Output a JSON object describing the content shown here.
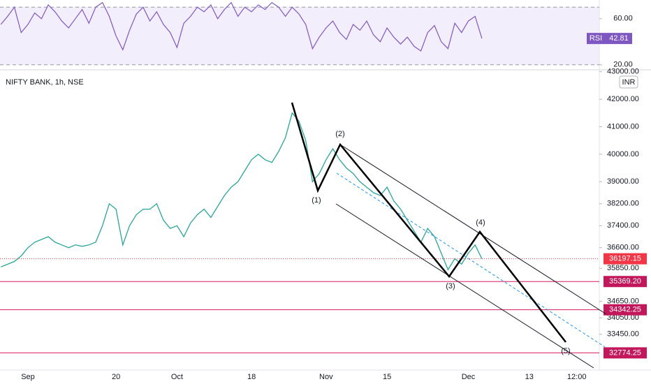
{
  "header": {
    "symbol": "NIFTY BANK, 1h, NSE",
    "currency": "INR"
  },
  "chart_data": [
    {
      "type": "line",
      "name": "RSI",
      "series": [
        {
          "name": "RSI",
          "color": "#7e57c2",
          "values": [
            55,
            62,
            70,
            48,
            55,
            65,
            60,
            72,
            66,
            58,
            52,
            60,
            68,
            56,
            70,
            74,
            62,
            45,
            33,
            50,
            64,
            70,
            58,
            66,
            55,
            48,
            35,
            56,
            62,
            70,
            66,
            72,
            60,
            68,
            74,
            62,
            70,
            66,
            72,
            68,
            74,
            70,
            62,
            70,
            64,
            55,
            34,
            44,
            52,
            58,
            48,
            42,
            55,
            50,
            58,
            46,
            40,
            52,
            44,
            38,
            44,
            36,
            32,
            48,
            54,
            40,
            34,
            56,
            48,
            58,
            62,
            42.81
          ]
        }
      ],
      "ylim": [
        15,
        75
      ],
      "yticks": [
        {
          "value": 60,
          "label": "60.00"
        },
        {
          "value": 20,
          "label": "20.00"
        }
      ],
      "bands": [
        70,
        20
      ]
    },
    {
      "type": "line",
      "color": "#26a69a",
      "categories": [
        null,
        null,
        null,
        null,
        "Sep",
        null,
        null,
        null,
        null,
        null,
        null,
        null,
        null,
        null,
        null,
        null,
        null,
        "20",
        null,
        null,
        null,
        null,
        null,
        null,
        null,
        null,
        "Oct",
        null,
        null,
        null,
        null,
        null,
        null,
        null,
        null,
        null,
        null,
        "18",
        null,
        null,
        null,
        null,
        null,
        null,
        null,
        null,
        null,
        null,
        "Nov",
        null,
        null,
        null,
        null,
        null,
        null,
        null,
        null,
        "15",
        null,
        null,
        null,
        null,
        null,
        null,
        null,
        null,
        null,
        null,
        null,
        "Dec",
        null,
        null,
        null,
        null,
        null,
        null,
        null,
        null,
        "13",
        null,
        null,
        null,
        null,
        null,
        null,
        "12:00",
        null,
        null,
        null,
        null
      ],
      "values": [
        35900,
        36000,
        36100,
        36300,
        36600,
        36800,
        36900,
        37000,
        36800,
        36700,
        36600,
        36700,
        36650,
        36700,
        36800,
        37400,
        38200,
        38000,
        36700,
        37400,
        37800,
        38000,
        38000,
        38200,
        37600,
        37300,
        37400,
        37000,
        37500,
        37800,
        38000,
        37700,
        38100,
        38500,
        38800,
        39000,
        39400,
        39800,
        40000,
        39800,
        39700,
        40100,
        40600,
        41500,
        41200,
        40500,
        39000,
        39300,
        39800,
        40200,
        39800,
        39500,
        39300,
        39000,
        38800,
        38600,
        38500,
        38800,
        38300,
        38000,
        37600,
        37200,
        36800,
        37300,
        37000,
        36400,
        35800,
        36200,
        36000,
        36400,
        36700,
        36197.15,
        null,
        null,
        null,
        null,
        null,
        null,
        null,
        null,
        null,
        null,
        null,
        null,
        null,
        null,
        null,
        null,
        null,
        null
      ],
      "ylim": [
        32150,
        43070
      ],
      "yticks": [
        {
          "value": 43000,
          "label": "43000.00"
        },
        {
          "value": 42000,
          "label": "42000.00"
        },
        {
          "value": 41000,
          "label": "41000.00"
        },
        {
          "value": 40000,
          "label": "40000.00"
        },
        {
          "value": 39000,
          "label": "39000.00"
        },
        {
          "value": 38200,
          "label": "38200.00"
        },
        {
          "value": 37400,
          "label": "37400.00"
        },
        {
          "value": 36600,
          "label": "36600.00"
        },
        {
          "value": 35850,
          "label": "35850.00"
        },
        {
          "value": 34650,
          "label": "34650.00"
        },
        {
          "value": 34050,
          "label": "34050.00"
        },
        {
          "value": 33450,
          "label": "33450.00"
        }
      ],
      "levels": [
        {
          "value": 35369.2,
          "label": "35369.20"
        },
        {
          "value": 34342.25,
          "label": "34342.25"
        },
        {
          "value": 32774.25,
          "label": "32774.25"
        }
      ],
      "wave_labels": [
        "(1)",
        "(2)",
        "(3)",
        "(4)",
        "(5)"
      ]
    }
  ]
}
